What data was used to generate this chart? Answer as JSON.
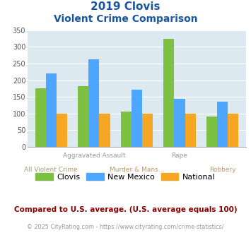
{
  "title_line1": "2019 Clovis",
  "title_line2": "Violent Crime Comparison",
  "series": {
    "Clovis": [
      175,
      183,
      105,
      325,
      90
    ],
    "New Mexico": [
      220,
      262,
      172,
      143,
      136
    ],
    "National": [
      100,
      100,
      100,
      100,
      100
    ]
  },
  "colors": {
    "Clovis": "#7dc142",
    "New Mexico": "#4da6ff",
    "National": "#f5a623"
  },
  "top_labels": [
    "",
    "Aggravated Assault",
    "",
    "Rape",
    ""
  ],
  "bot_labels": [
    "All Violent Crime",
    "",
    "Murder & Mans...",
    "",
    "Robbery"
  ],
  "ylim": [
    0,
    350
  ],
  "yticks": [
    0,
    50,
    100,
    150,
    200,
    250,
    300,
    350
  ],
  "background_color": "#dce9f0",
  "title_color": "#1a56a0",
  "top_label_color": "#999999",
  "bot_label_color": "#b8966e",
  "footer_text": "Compared to U.S. average. (U.S. average equals 100)",
  "copyright_text": "© 2025 CityRating.com - https://www.cityrating.com/crime-statistics/",
  "footer_color": "#8b0000",
  "copyright_color": "#999999",
  "bar_width": 0.25
}
